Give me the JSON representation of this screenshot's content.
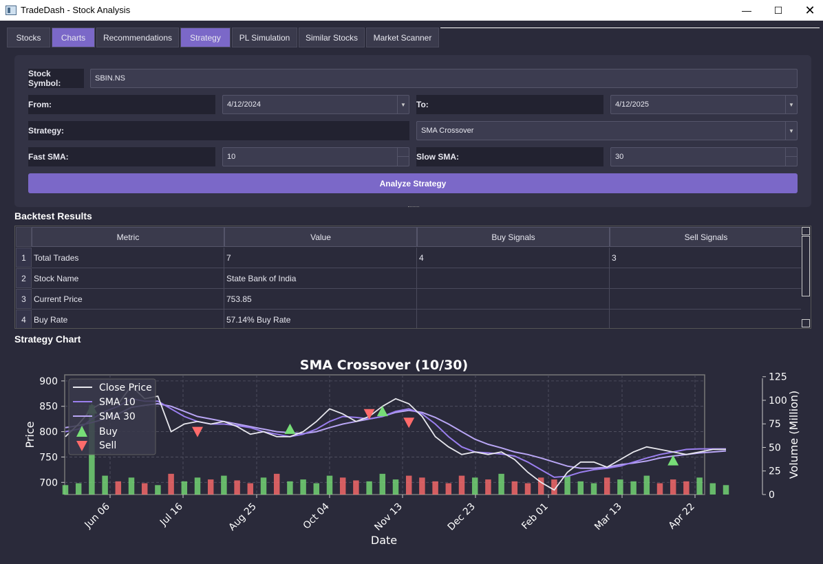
{
  "window": {
    "title": "TradeDash - Stock Analysis"
  },
  "tabs": [
    {
      "label": "Stocks",
      "active": false
    },
    {
      "label": "Charts",
      "active": true
    },
    {
      "label": "Recommendations",
      "active": false
    },
    {
      "label": "Strategy",
      "active": true
    },
    {
      "label": "PL Simulation",
      "active": false
    },
    {
      "label": "Similar Stocks",
      "active": false
    },
    {
      "label": "Market Scanner",
      "active": false
    }
  ],
  "form": {
    "symbol_label": "Stock Symbol:",
    "symbol_value": "SBIN.NS",
    "from_label": "From:",
    "from_value": "4/12/2024",
    "to_label": "To:",
    "to_value": "4/12/2025",
    "strategy_label": "Strategy:",
    "strategy_value": "SMA Crossover",
    "fast_label": "Fast SMA:",
    "fast_value": "10",
    "slow_label": "Slow SMA:",
    "slow_value": "30",
    "analyze_label": "Analyze Strategy"
  },
  "results": {
    "title": "Backtest Results",
    "headers": [
      "Metric",
      "Value",
      "Buy Signals",
      "Sell Signals"
    ],
    "rows": [
      {
        "n": "1",
        "metric": "Total Trades",
        "value": "7",
        "buy": "4",
        "sell": "3"
      },
      {
        "n": "2",
        "metric": "Stock Name",
        "value": "State Bank of India",
        "buy": "",
        "sell": ""
      },
      {
        "n": "3",
        "metric": "Current Price",
        "value": "753.85",
        "buy": "",
        "sell": ""
      },
      {
        "n": "4",
        "metric": "Buy Rate",
        "value": "57.14% Buy Rate",
        "buy": "",
        "sell": ""
      }
    ]
  },
  "chart_section_title": "Strategy Chart",
  "chart_data": {
    "type": "line",
    "title": "SMA Crossover (10/30)",
    "xlabel": "Date",
    "ylabel": "Price",
    "y2label": "Volume (Million)",
    "xticks": [
      "Jun 06",
      "Jul 16",
      "Aug 25",
      "Oct 04",
      "Nov 13",
      "Dec 23",
      "Feb 01",
      "Mar 13",
      "Apr 22"
    ],
    "yticks": [
      700,
      750,
      800,
      850,
      900
    ],
    "y2ticks": [
      0,
      25,
      50,
      75,
      100,
      125
    ],
    "ylim": [
      676,
      912
    ],
    "y2lim": [
      0,
      127
    ],
    "legend": [
      "Close Price",
      "SMA 10",
      "SMA 30",
      "Buy",
      "Sell"
    ],
    "legend_position": "upper-left",
    "grid": true,
    "colors": {
      "close": "#e8e8ee",
      "sma10": "#9b7ff0",
      "sma30": "#b9a6f5",
      "buy": "#77dd77",
      "sell": "#ff6b6b",
      "up_volume": "#77dd77",
      "down_volume": "#ff6b6b"
    },
    "x_days": [
      0,
      7,
      14,
      21,
      28,
      35,
      42,
      49,
      56,
      63,
      70,
      77,
      84,
      91,
      98,
      105,
      112,
      119,
      126,
      133,
      140,
      147,
      154,
      161,
      168,
      175,
      182,
      189,
      196,
      203,
      210,
      217,
      224,
      231,
      238,
      245,
      252,
      259,
      266,
      273,
      280,
      287,
      294,
      301,
      308,
      315,
      322,
      329,
      336,
      343,
      350
    ],
    "close": [
      790,
      815,
      845,
      860,
      855,
      890,
      865,
      870,
      800,
      815,
      820,
      815,
      820,
      810,
      795,
      800,
      790,
      790,
      800,
      820,
      845,
      835,
      820,
      830,
      850,
      865,
      855,
      830,
      790,
      770,
      755,
      760,
      755,
      760,
      745,
      720,
      700,
      685,
      720,
      740,
      740,
      730,
      745,
      760,
      770,
      765,
      760,
      755,
      760,
      765,
      765
    ],
    "sma10": [
      800,
      805,
      825,
      840,
      850,
      865,
      860,
      860,
      845,
      830,
      820,
      815,
      815,
      812,
      808,
      800,
      795,
      790,
      795,
      805,
      820,
      830,
      828,
      825,
      830,
      840,
      845,
      835,
      815,
      790,
      770,
      760,
      758,
      756,
      752,
      740,
      725,
      710,
      712,
      720,
      725,
      728,
      732,
      740,
      748,
      755,
      760,
      765,
      766,
      766,
      766
    ],
    "sma30": [
      808,
      812,
      818,
      825,
      835,
      848,
      852,
      855,
      850,
      840,
      830,
      825,
      820,
      815,
      810,
      805,
      800,
      798,
      796,
      800,
      808,
      815,
      820,
      825,
      830,
      838,
      842,
      838,
      828,
      815,
      800,
      785,
      775,
      768,
      760,
      755,
      748,
      740,
      732,
      728,
      728,
      730,
      735,
      738,
      742,
      748,
      752,
      755,
      758,
      760,
      762
    ],
    "buy_signals": [
      {
        "date_index": 17,
        "price": 805
      },
      {
        "date_index": 24,
        "price": 840
      },
      {
        "date_index": 46,
        "price": 743
      },
      {
        "date_index": 2,
        "price": 845
      }
    ],
    "sell_signals": [
      {
        "date_index": 10,
        "price": 800
      },
      {
        "date_index": 23,
        "price": 835
      },
      {
        "date_index": 26,
        "price": 818
      }
    ],
    "volume": [
      10,
      12,
      95,
      20,
      14,
      18,
      12,
      10,
      22,
      14,
      18,
      16,
      20,
      15,
      12,
      18,
      22,
      14,
      16,
      12,
      20,
      18,
      15,
      14,
      22,
      16,
      20,
      18,
      14,
      12,
      20,
      18,
      16,
      22,
      14,
      12,
      18,
      16,
      20,
      14,
      12,
      18,
      16,
      14,
      20,
      12,
      16,
      14,
      18,
      12,
      10
    ]
  }
}
